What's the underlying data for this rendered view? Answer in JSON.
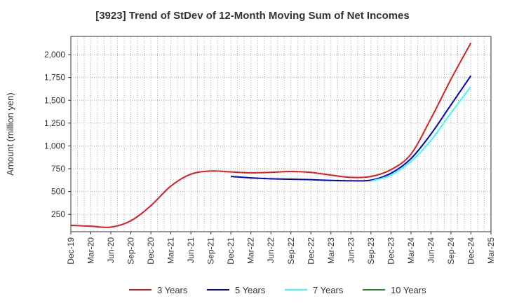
{
  "chart_data": {
    "type": "line",
    "title": "[3923]  Trend of StDev of 12-Month Moving Sum of Net Incomes",
    "xlabel": "",
    "ylabel": "Amount (million yen)",
    "ylim": [
      60,
      2200
    ],
    "yticks": [
      250,
      500,
      750,
      1000,
      1250,
      1500,
      1750,
      2000
    ],
    "ytick_labels": [
      "250",
      "500",
      "750",
      "1,000",
      "1,250",
      "1,500",
      "1,750",
      "2,000"
    ],
    "xticks": [
      "Dec-19",
      "Mar-20",
      "Jun-20",
      "Sep-20",
      "Dec-20",
      "Mar-21",
      "Jun-21",
      "Sep-21",
      "Dec-21",
      "Mar-22",
      "Jun-22",
      "Sep-22",
      "Dec-22",
      "Mar-23",
      "Jun-23",
      "Sep-23",
      "Dec-23",
      "Mar-24",
      "Jun-24",
      "Sep-24",
      "Dec-24",
      "Mar-25"
    ],
    "grid": true,
    "legend_position": "bottom",
    "series": [
      {
        "name": "3 Years",
        "color": "#e41a1c",
        "x": [
          "Dec-19",
          "Mar-20",
          "Jun-20",
          "Sep-20",
          "Dec-20",
          "Mar-21",
          "Jun-21",
          "Sep-21",
          "Dec-21",
          "Mar-22",
          "Jun-22",
          "Sep-22",
          "Dec-22",
          "Mar-23",
          "Jun-23",
          "Sep-23",
          "Dec-23",
          "Mar-24",
          "Jun-24",
          "Sep-24",
          "Dec-24"
        ],
        "values": [
          130,
          120,
          110,
          180,
          345,
          560,
          690,
          725,
          715,
          705,
          710,
          720,
          710,
          680,
          655,
          665,
          740,
          910,
          1300,
          1730,
          2130
        ]
      },
      {
        "name": "5 Years",
        "color": "#0000cc",
        "x": [
          "Dec-21",
          "Mar-22",
          "Jun-22",
          "Sep-22",
          "Dec-22",
          "Mar-23",
          "Jun-23",
          "Sep-23",
          "Dec-23",
          "Mar-24",
          "Jun-24",
          "Sep-24",
          "Dec-24"
        ],
        "values": [
          665,
          650,
          640,
          635,
          630,
          622,
          618,
          625,
          700,
          860,
          1130,
          1450,
          1770
        ]
      },
      {
        "name": "7 Years",
        "color": "#33ffff",
        "x": [
          "Sep-23",
          "Dec-23",
          "Mar-24",
          "Jun-24",
          "Sep-24",
          "Dec-24"
        ],
        "values": [
          615,
          680,
          830,
          1060,
          1360,
          1650
        ]
      },
      {
        "name": "10 Years",
        "color": "#228b22",
        "x": [],
        "values": []
      }
    ]
  }
}
